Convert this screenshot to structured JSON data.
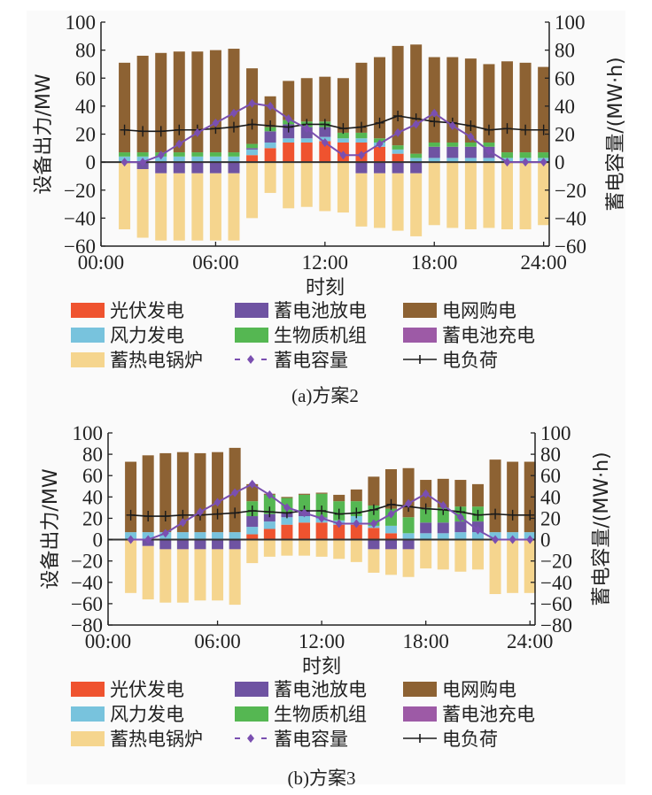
{
  "legend": [
    {
      "key": "pv",
      "label": "光伏发电",
      "color": "#ef532f",
      "kind": "bar"
    },
    {
      "key": "batt_dis",
      "label": "蓄电池放电",
      "color": "#6f53a2",
      "kind": "bar"
    },
    {
      "key": "grid",
      "label": "电网购电",
      "color": "#8d6233",
      "kind": "bar"
    },
    {
      "key": "wind",
      "label": "风力发电",
      "color": "#78c3dd",
      "kind": "bar"
    },
    {
      "key": "bio",
      "label": "生物质机组",
      "color": "#55b752",
      "kind": "bar"
    },
    {
      "key": "batt_chg",
      "label": "蓄电池充电",
      "color": "#9d5aa6",
      "kind": "bar"
    },
    {
      "key": "boiler",
      "label": "蓄热电锅炉",
      "color": "#f5d58e",
      "kind": "bar"
    },
    {
      "key": "soc",
      "label": "蓄电容量",
      "color": "#7a4fb0",
      "kind": "line-diamond"
    },
    {
      "key": "load",
      "label": "电负荷",
      "color": "#1a1a1a",
      "kind": "line-plus"
    }
  ],
  "chart_data": [
    {
      "type": "bar",
      "id": "a",
      "caption": "(a)方案2",
      "xlabel": "时刻",
      "ylabel": "设备出力/MW",
      "y2label": "蓄电容量/(MW·h)",
      "ylim": [
        -60,
        100
      ],
      "y2lim": [
        -60,
        100
      ],
      "yticks": [
        "100",
        "80",
        "60",
        "40",
        "20",
        "0",
        "−20",
        "−40",
        "−60"
      ],
      "ytick_values": [
        100,
        80,
        60,
        40,
        20,
        0,
        -20,
        -40,
        -60
      ],
      "xticks": [
        "00:00",
        "06:00",
        "12:00",
        "18:00",
        "24:00"
      ],
      "xtick_values": [
        0,
        6,
        12,
        18,
        24
      ],
      "x": [
        1,
        2,
        3,
        4,
        5,
        6,
        7,
        8,
        9,
        10,
        11,
        12,
        13,
        14,
        15,
        16,
        17,
        18,
        19,
        20,
        21,
        22,
        23,
        24
      ],
      "stack_positive": [
        "pv",
        "wind",
        "batt_dis",
        "bio",
        "grid"
      ],
      "stack_negative": [
        "batt_chg",
        "boiler"
      ],
      "series": {
        "pv": [
          0,
          0,
          0,
          0,
          0,
          0,
          0,
          5,
          10,
          14,
          14,
          15,
          14,
          14,
          11,
          6,
          0,
          0,
          0,
          0,
          0,
          0,
          0,
          0
        ],
        "wind": [
          4,
          4,
          4,
          4,
          4,
          4,
          4,
          4,
          4,
          3,
          3,
          3,
          3,
          3,
          3,
          3,
          3,
          3,
          3,
          3,
          3,
          3,
          3,
          3
        ],
        "batt_dis": [
          0,
          0,
          0,
          0,
          0,
          0,
          0,
          1,
          8,
          10,
          8,
          7,
          0,
          0,
          0,
          0,
          0,
          8,
          8,
          8,
          8,
          0,
          0,
          0
        ],
        "bio": [
          3,
          3,
          3,
          3,
          3,
          3,
          3,
          3,
          3,
          3,
          4,
          4,
          4,
          4,
          3,
          3,
          3,
          3,
          3,
          3,
          3,
          4,
          4,
          4
        ],
        "grid": [
          64,
          69,
          71,
          72,
          72,
          73,
          74,
          54,
          22,
          28,
          31,
          32,
          39,
          50,
          58,
          71,
          78,
          61,
          61,
          60,
          56,
          65,
          64,
          61
        ],
        "batt_chg": [
          0,
          5,
          8,
          8,
          8,
          8,
          8,
          0,
          0,
          0,
          0,
          0,
          0,
          8,
          8,
          8,
          8,
          0,
          0,
          0,
          0,
          0,
          0,
          0
        ],
        "boiler": [
          48,
          49,
          48,
          48,
          48,
          48,
          48,
          40,
          22,
          33,
          32,
          35,
          36,
          38,
          39,
          41,
          45,
          45,
          47,
          48,
          47,
          48,
          48,
          45
        ],
        "load": [
          23,
          22,
          22,
          23,
          23,
          24,
          25,
          27,
          26,
          25,
          27,
          27,
          24,
          25,
          28,
          33,
          31,
          29,
          28,
          26,
          23,
          24,
          23,
          23
        ],
        "soc": [
          0,
          0,
          5,
          13,
          21,
          28,
          35,
          42,
          40,
          31,
          24,
          14,
          5,
          5,
          13,
          21,
          27,
          35,
          26,
          18,
          8,
          0,
          0,
          0
        ]
      }
    },
    {
      "type": "bar",
      "id": "b",
      "caption": "(b)方案3",
      "xlabel": "时刻",
      "ylabel": "设备出力/MW",
      "y2label": "蓄电容量/(MW·h)",
      "ylim": [
        -80,
        100
      ],
      "y2lim": [
        -80,
        100
      ],
      "yticks": [
        "100",
        "80",
        "60",
        "40",
        "20",
        "0",
        "−20",
        "−40",
        "−60",
        "−80"
      ],
      "ytick_values": [
        100,
        80,
        60,
        40,
        20,
        0,
        -20,
        -40,
        -60,
        -80
      ],
      "xticks": [
        "00:00",
        "06:00",
        "12:00",
        "18:00",
        "24:00"
      ],
      "xtick_values": [
        0,
        6,
        12,
        18,
        24
      ],
      "x": [
        1,
        2,
        3,
        4,
        5,
        6,
        7,
        8,
        9,
        10,
        11,
        12,
        13,
        14,
        15,
        16,
        17,
        18,
        19,
        20,
        21,
        22,
        23,
        24
      ],
      "stack_positive": [
        "pv",
        "wind",
        "batt_dis",
        "bio",
        "grid"
      ],
      "stack_negative": [
        "batt_chg",
        "boiler"
      ],
      "series": {
        "pv": [
          0,
          0,
          0,
          0,
          0,
          0,
          0,
          5,
          10,
          14,
          16,
          16,
          14,
          14,
          11,
          6,
          0,
          0,
          0,
          0,
          0,
          0,
          0,
          0
        ],
        "wind": [
          7,
          7,
          7,
          7,
          7,
          7,
          7,
          7,
          7,
          7,
          6,
          4,
          4,
          8,
          2,
          7,
          6,
          6,
          6,
          7,
          7,
          7,
          7,
          7
        ],
        "batt_dis": [
          0,
          0,
          0,
          0,
          0,
          0,
          0,
          10,
          7,
          4,
          5,
          1,
          0,
          0,
          0,
          0,
          0,
          10,
          10,
          10,
          10,
          0,
          0,
          0
        ],
        "bio": [
          0,
          0,
          0,
          0,
          0,
          0,
          0,
          14,
          18,
          14,
          15,
          22,
          18,
          14,
          19,
          16,
          15,
          14,
          14,
          14,
          14,
          0,
          0,
          0
        ],
        "grid": [
          66,
          72,
          74,
          75,
          74,
          75,
          79,
          16,
          1,
          1,
          1,
          1,
          6,
          11,
          27,
          37,
          46,
          26,
          27,
          25,
          21,
          68,
          66,
          66
        ],
        "batt_chg": [
          0,
          6,
          9,
          9,
          9,
          9,
          9,
          0,
          0,
          0,
          0,
          0,
          0,
          0,
          9,
          9,
          9,
          0,
          0,
          0,
          0,
          0,
          0,
          0
        ],
        "boiler": [
          50,
          50,
          50,
          50,
          48,
          48,
          52,
          22,
          16,
          15,
          15,
          16,
          18,
          21,
          22,
          24,
          26,
          27,
          28,
          30,
          28,
          51,
          50,
          50
        ],
        "load": [
          23,
          22,
          22,
          23,
          23,
          24,
          25,
          27,
          26,
          25,
          27,
          27,
          24,
          25,
          28,
          33,
          31,
          29,
          28,
          26,
          23,
          24,
          23,
          23
        ],
        "soc": [
          0,
          0,
          6,
          16,
          26,
          35,
          44,
          52,
          42,
          30,
          25,
          20,
          15,
          15,
          15,
          24,
          34,
          43,
          32,
          21,
          9,
          0,
          0,
          0
        ]
      }
    }
  ]
}
